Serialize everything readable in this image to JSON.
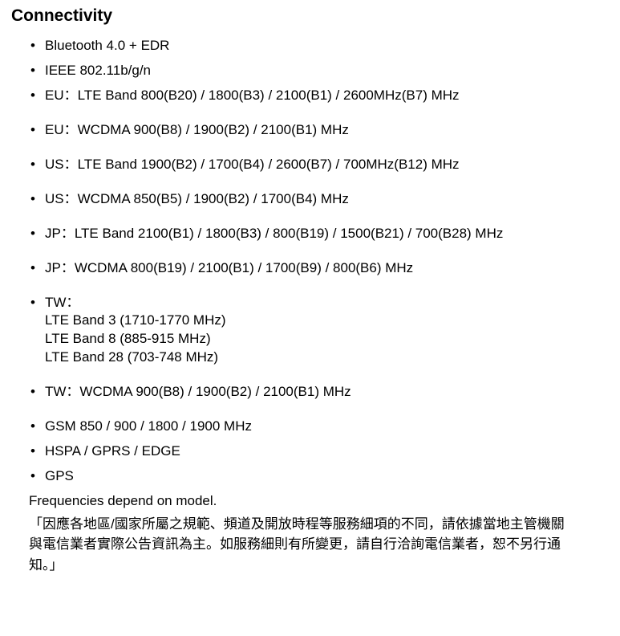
{
  "heading": "Connectivity",
  "items": [
    {
      "text": "Bluetooth 4.0 + EDR",
      "gap": false
    },
    {
      "text": "IEEE 802.11b/g/n",
      "gap": false
    },
    {
      "text": "EU：LTE Band 800(B20) / 1800(B3) / 2100(B1) / 2600MHz(B7) MHz",
      "gap": true
    },
    {
      "text": "EU：WCDMA 900(B8) / 1900(B2) / 2100(B1) MHz",
      "gap": true
    },
    {
      "text": "US：LTE Band 1900(B2) / 1700(B4) / 2600(B7) / 700MHz(B12) MHz",
      "gap": true
    },
    {
      "text": "US：WCDMA 850(B5) / 1900(B2) / 1700(B4) MHz",
      "gap": true
    },
    {
      "text": "JP：LTE Band 2100(B1) / 1800(B3) / 800(B19) / 1500(B21) / 700(B28) MHz",
      "gap": true
    },
    {
      "text": "JP：WCDMA 800(B19) / 2100(B1) / 1700(B9) / 800(B6) MHz",
      "gap": true
    },
    {
      "lines": [
        "TW：",
        "LTE Band 3 (1710-1770 MHz)",
        "LTE Band 8 (885-915 MHz)",
        "LTE Band 28 (703-748 MHz)"
      ],
      "gap": true
    },
    {
      "text": "TW：WCDMA 900(B8) / 1900(B2) / 2100(B1) MHz",
      "gap": true
    },
    {
      "text": "GSM 850 / 900 / 1800 / 1900 MHz",
      "gap": false
    },
    {
      "text": "HSPA / GPRS / EDGE",
      "gap": false
    },
    {
      "text": "GPS",
      "gap": false
    }
  ],
  "note_en": "Frequencies depend on model.",
  "note_cjk": "「因應各地區/國家所屬之規範、頻道及開放時程等服務細項的不同，請依據當地主管機關與電信業者實際公告資訊為主。如服務細則有所變更，請自行洽詢電信業者，恕不另行通知。」"
}
